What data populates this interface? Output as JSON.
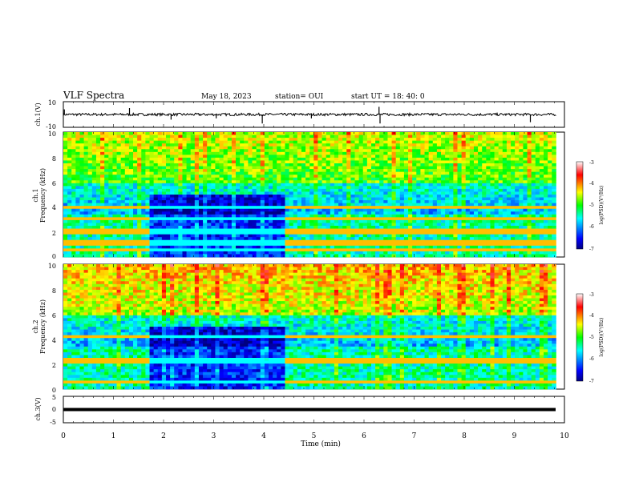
{
  "header": {
    "title": "VLF Spectra",
    "date": "May 18, 2023",
    "station": "station= OUI",
    "start": "start  UT  =   18: 40: 0"
  },
  "chart_data": [
    {
      "type": "line",
      "panel": "ch1-waveform",
      "ylabel": "ch.1(V)",
      "ylim": [
        -10,
        10
      ],
      "y_ticks": [
        "10",
        "-10"
      ],
      "xlim": [
        0,
        10
      ],
      "baseline": 0,
      "noise_amplitude": 1.0,
      "spikes": [
        {
          "x": 0.02,
          "y": 4
        },
        {
          "x": 1.32,
          "y": 5
        },
        {
          "x": 2.15,
          "y": -4
        },
        {
          "x": 3.05,
          "y": -3
        },
        {
          "x": 3.97,
          "y": -7
        },
        {
          "x": 4.95,
          "y": -3
        },
        {
          "x": 6.3,
          "y": 6
        },
        {
          "x": 6.32,
          "y": -7
        },
        {
          "x": 9.32,
          "y": -6
        }
      ]
    },
    {
      "type": "heatmap",
      "panel": "ch1-spectrogram",
      "ylabel_line1": "ch.1",
      "ylabel_line2": "Frequency (kHz)",
      "ylim": [
        0,
        10
      ],
      "y_ticks": [
        "0",
        "2",
        "4",
        "6",
        "8",
        "10"
      ],
      "xlim": [
        0,
        10
      ],
      "colorbar": {
        "min": -7,
        "max": -3,
        "ticks": [
          "-3",
          "-4",
          "-5",
          "-6",
          "-7"
        ],
        "label": "log(PSD)(V²/Hz)"
      },
      "quiet_segments": [
        {
          "x0": 1.7,
          "x1": 4.4
        }
      ],
      "lines_khz": [
        0.5,
        1.1,
        2.05,
        3.1,
        4.0
      ]
    },
    {
      "type": "heatmap",
      "panel": "ch2-spectrogram",
      "ylabel_line1": "ch.2",
      "ylabel_line2": "Frequency (kHz)",
      "ylim": [
        0,
        10
      ],
      "y_ticks": [
        "0",
        "2",
        "4",
        "6",
        "8",
        "10"
      ],
      "xlim": [
        0,
        10
      ],
      "colorbar": {
        "min": -7,
        "max": -3,
        "ticks": [
          "-3",
          "-4",
          "-5",
          "-6",
          "-7"
        ],
        "label": "log(PSD)(V²/Hz)"
      },
      "quiet_segments": [
        {
          "x0": 1.7,
          "x1": 4.4
        }
      ],
      "lines_khz": [
        0.6,
        2.1,
        2.3,
        4.2
      ]
    },
    {
      "type": "line",
      "panel": "ch3-waveform",
      "ylabel": "ch.3(V)",
      "ylim": [
        -5,
        5
      ],
      "y_ticks": [
        "5",
        "0",
        "-5"
      ],
      "xlim": [
        0,
        10
      ],
      "baseline": 0
    }
  ],
  "x_axis": {
    "label": "Time (min)",
    "ticks": [
      "0",
      "1",
      "2",
      "3",
      "4",
      "5",
      "6",
      "7",
      "8",
      "9",
      "10"
    ]
  }
}
